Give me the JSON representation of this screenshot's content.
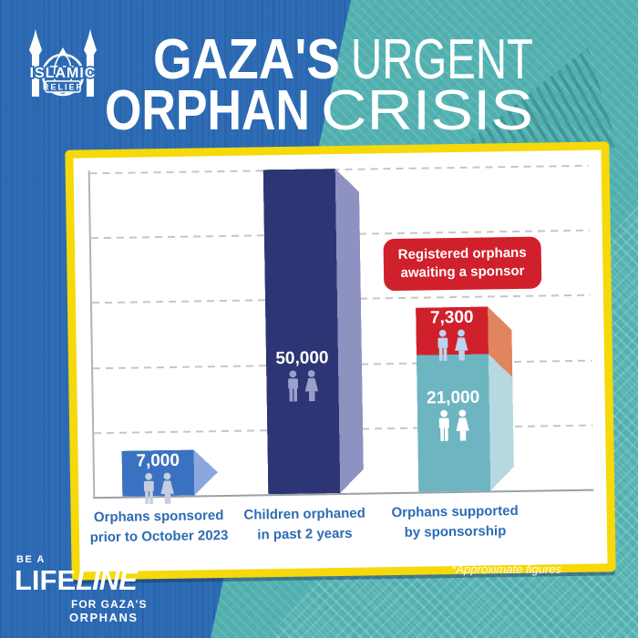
{
  "brand": {
    "name": "Islamic Relief",
    "logo_text_top": "ISLAMIC",
    "logo_text_bottom": "RELIEF"
  },
  "header": {
    "title_line1_strong": "GAZA'S",
    "title_line1_light": "URGENT",
    "title_line2_strong": "ORPHAN",
    "title_line2_light": "CRISIS"
  },
  "colors": {
    "background_blue": "#2e6db6",
    "background_teal": "#52b1b0",
    "frame_yellow": "#f5d90a",
    "panel_white": "#ffffff",
    "axis_label_blue": "#2d6cb4",
    "callout_red": "#d0202c"
  },
  "chart_data": {
    "type": "bar",
    "title": "Gaza's Urgent Orphan Crisis",
    "ylim": [
      0,
      50000
    ],
    "gridline_values": [
      10000,
      20000,
      30000,
      40000,
      50000
    ],
    "grid_style": "dashed-horizontal",
    "legend": "none",
    "callout": {
      "text_line1": "Registered orphans",
      "text_line2": "awaiting a sponsor",
      "color": "#d0202c"
    },
    "bars": [
      {
        "category_line1": "Orphans sponsored",
        "category_line2": "prior to October 2023",
        "segments": [
          {
            "value": 7000,
            "label": "7,000",
            "face_color": "#3b71c1",
            "side_color": "#8ca7de",
            "icon_color": "#c6cedd"
          }
        ]
      },
      {
        "category_line1": "Children orphaned",
        "category_line2": "in past 2 years",
        "segments": [
          {
            "value": 50000,
            "label": "50,000",
            "face_color": "#2e3574",
            "side_color": "#8d92c1",
            "icon_color": "#9aa0cb"
          }
        ]
      },
      {
        "category_line1": "Orphans supported",
        "category_line2": "by sponsorship",
        "segments": [
          {
            "value": 7300,
            "label": "7,300",
            "face_color": "#d0202c",
            "side_color": "#e0855f",
            "icon_color": "#bdd4ef"
          },
          {
            "value": 21000,
            "label": "21,000",
            "face_color": "#6db5c1",
            "side_color": "#b6d8e0",
            "icon_color": "#ffffff"
          }
        ]
      }
    ],
    "footnote": "*Approximate figures"
  },
  "footer": {
    "tagline_pre": "BE A",
    "tagline_word_upright": "LIFE",
    "tagline_word_italic": "LINE",
    "tagline_sub1": "FOR GAZA'S",
    "tagline_sub2": "ORPHANS"
  }
}
